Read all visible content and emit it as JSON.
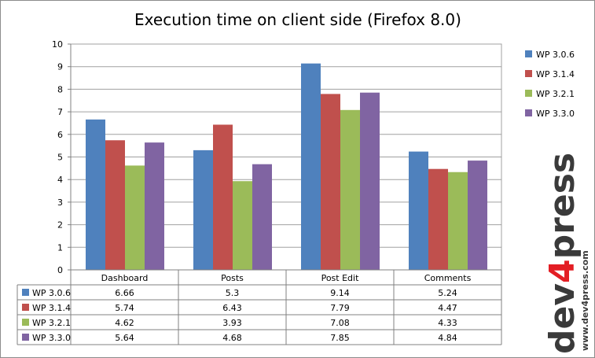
{
  "chart_data": {
    "type": "bar",
    "title": "Execution time on client side (Firefox 8.0)",
    "categories": [
      "Dashboard",
      "Posts",
      "Post Edit",
      "Comments"
    ],
    "series": [
      {
        "name": "WP 3.0.6",
        "values": [
          6.66,
          5.3,
          9.14,
          5.24
        ],
        "labels": [
          "6.66",
          "5.3",
          "9.14",
          "5.24"
        ],
        "color": "#4f81bd"
      },
      {
        "name": "WP 3.1.4",
        "values": [
          5.74,
          6.43,
          7.79,
          4.47
        ],
        "labels": [
          "5.74",
          "6.43",
          "7.79",
          "4.47"
        ],
        "color": "#c0504d"
      },
      {
        "name": "WP 3.2.1",
        "values": [
          4.62,
          3.93,
          7.08,
          4.33
        ],
        "labels": [
          "4.62",
          "3.93",
          "7.08",
          "4.33"
        ],
        "color": "#9bbb59"
      },
      {
        "name": "WP 3.3.0",
        "values": [
          5.64,
          4.68,
          7.85,
          4.84
        ],
        "labels": [
          "5.64",
          "4.68",
          "7.85",
          "4.84"
        ],
        "color": "#8064a2"
      }
    ],
    "ylim": [
      0,
      10
    ],
    "yticks": [
      "0",
      "1",
      "2",
      "3",
      "4",
      "5",
      "6",
      "7",
      "8",
      "9",
      "10"
    ],
    "grid": true,
    "legend_position": "right",
    "data_table": true
  },
  "watermark": {
    "brand": "dev4press",
    "brand_prefix": "dev",
    "brand_digit": "4",
    "brand_suffix": "press",
    "url": "www.dev4press.com"
  }
}
